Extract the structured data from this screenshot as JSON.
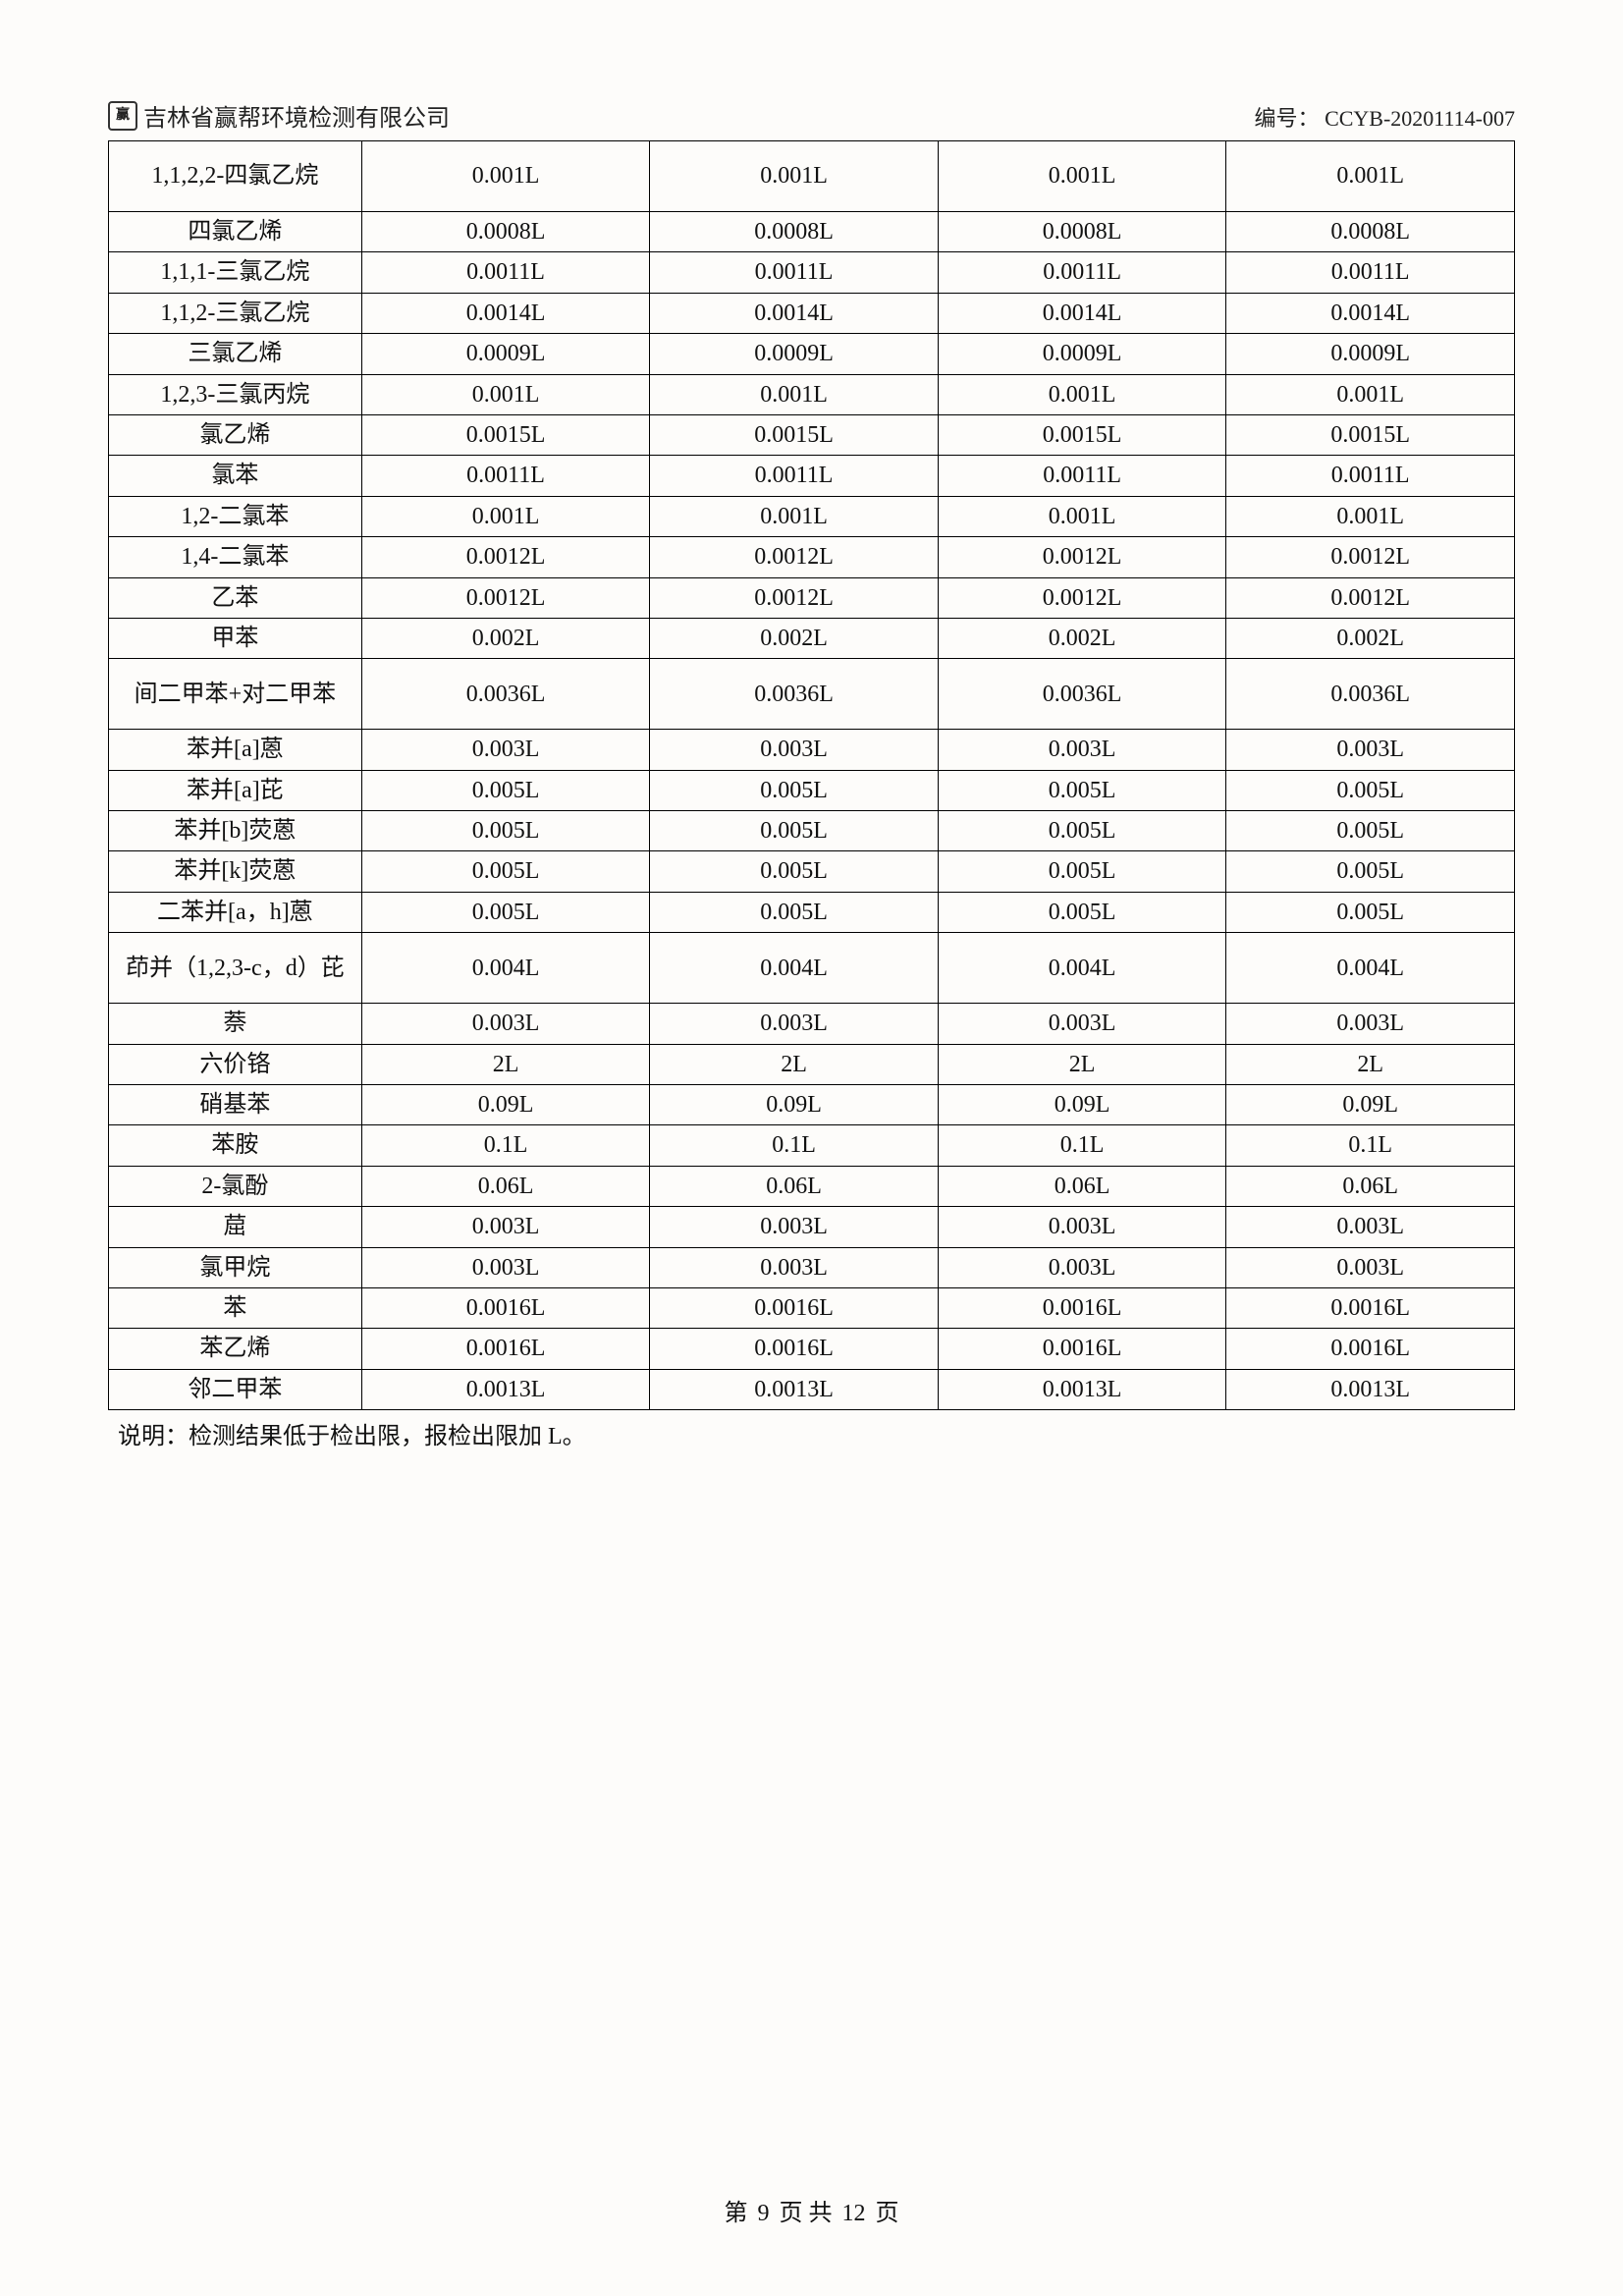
{
  "header": {
    "company": "吉林省赢帮环境检测有限公司",
    "logo_text": "赢",
    "docno_label": "编号：",
    "docno_value": "CCYB-20201114-007"
  },
  "table": {
    "col_widths_pct": [
      18,
      20.5,
      20.5,
      20.5,
      20.5
    ],
    "rows": [
      {
        "label": "1,1,2,2-四氯乙烷",
        "vals": [
          "0.001L",
          "0.001L",
          "0.001L",
          "0.001L"
        ],
        "tall": true
      },
      {
        "label": "四氯乙烯",
        "vals": [
          "0.0008L",
          "0.0008L",
          "0.0008L",
          "0.0008L"
        ]
      },
      {
        "label": "1,1,1-三氯乙烷",
        "vals": [
          "0.0011L",
          "0.0011L",
          "0.0011L",
          "0.0011L"
        ]
      },
      {
        "label": "1,1,2-三氯乙烷",
        "vals": [
          "0.0014L",
          "0.0014L",
          "0.0014L",
          "0.0014L"
        ]
      },
      {
        "label": "三氯乙烯",
        "vals": [
          "0.0009L",
          "0.0009L",
          "0.0009L",
          "0.0009L"
        ]
      },
      {
        "label": "1,2,3-三氯丙烷",
        "vals": [
          "0.001L",
          "0.001L",
          "0.001L",
          "0.001L"
        ]
      },
      {
        "label": "氯乙烯",
        "vals": [
          "0.0015L",
          "0.0015L",
          "0.0015L",
          "0.0015L"
        ]
      },
      {
        "label": "氯苯",
        "vals": [
          "0.0011L",
          "0.0011L",
          "0.0011L",
          "0.0011L"
        ]
      },
      {
        "label": "1,2-二氯苯",
        "vals": [
          "0.001L",
          "0.001L",
          "0.001L",
          "0.001L"
        ]
      },
      {
        "label": "1,4-二氯苯",
        "vals": [
          "0.0012L",
          "0.0012L",
          "0.0012L",
          "0.0012L"
        ]
      },
      {
        "label": "乙苯",
        "vals": [
          "0.0012L",
          "0.0012L",
          "0.0012L",
          "0.0012L"
        ]
      },
      {
        "label": "甲苯",
        "vals": [
          "0.002L",
          "0.002L",
          "0.002L",
          "0.002L"
        ]
      },
      {
        "label": "间二甲苯+对二甲苯",
        "vals": [
          "0.0036L",
          "0.0036L",
          "0.0036L",
          "0.0036L"
        ],
        "tall": true
      },
      {
        "label": "苯并[a]蒽",
        "vals": [
          "0.003L",
          "0.003L",
          "0.003L",
          "0.003L"
        ]
      },
      {
        "label": "苯并[a]芘",
        "vals": [
          "0.005L",
          "0.005L",
          "0.005L",
          "0.005L"
        ]
      },
      {
        "label": "苯并[b]荧蒽",
        "vals": [
          "0.005L",
          "0.005L",
          "0.005L",
          "0.005L"
        ]
      },
      {
        "label": "苯并[k]荧蒽",
        "vals": [
          "0.005L",
          "0.005L",
          "0.005L",
          "0.005L"
        ]
      },
      {
        "label": "二苯并[a，h]蒽",
        "vals": [
          "0.005L",
          "0.005L",
          "0.005L",
          "0.005L"
        ]
      },
      {
        "label": "茚并（1,2,3-c，d）芘",
        "vals": [
          "0.004L",
          "0.004L",
          "0.004L",
          "0.004L"
        ],
        "tall": true
      },
      {
        "label": "萘",
        "vals": [
          "0.003L",
          "0.003L",
          "0.003L",
          "0.003L"
        ]
      },
      {
        "label": "六价铬",
        "vals": [
          "2L",
          "2L",
          "2L",
          "2L"
        ]
      },
      {
        "label": "硝基苯",
        "vals": [
          "0.09L",
          "0.09L",
          "0.09L",
          "0.09L"
        ]
      },
      {
        "label": "苯胺",
        "vals": [
          "0.1L",
          "0.1L",
          "0.1L",
          "0.1L"
        ]
      },
      {
        "label": "2-氯酚",
        "vals": [
          "0.06L",
          "0.06L",
          "0.06L",
          "0.06L"
        ]
      },
      {
        "label": "䓛",
        "vals": [
          "0.003L",
          "0.003L",
          "0.003L",
          "0.003L"
        ]
      },
      {
        "label": "氯甲烷",
        "vals": [
          "0.003L",
          "0.003L",
          "0.003L",
          "0.003L"
        ]
      },
      {
        "label": "苯",
        "vals": [
          "0.0016L",
          "0.0016L",
          "0.0016L",
          "0.0016L"
        ]
      },
      {
        "label": "苯乙烯",
        "vals": [
          "0.0016L",
          "0.0016L",
          "0.0016L",
          "0.0016L"
        ]
      },
      {
        "label": "邻二甲苯",
        "vals": [
          "0.0013L",
          "0.0013L",
          "0.0013L",
          "0.0013L"
        ]
      }
    ]
  },
  "note": "说明：检测结果低于检出限，报检出限加 L。",
  "footer": {
    "prefix": "第",
    "page": "9",
    "middle": "页 共",
    "total": "12",
    "suffix": "页"
  }
}
